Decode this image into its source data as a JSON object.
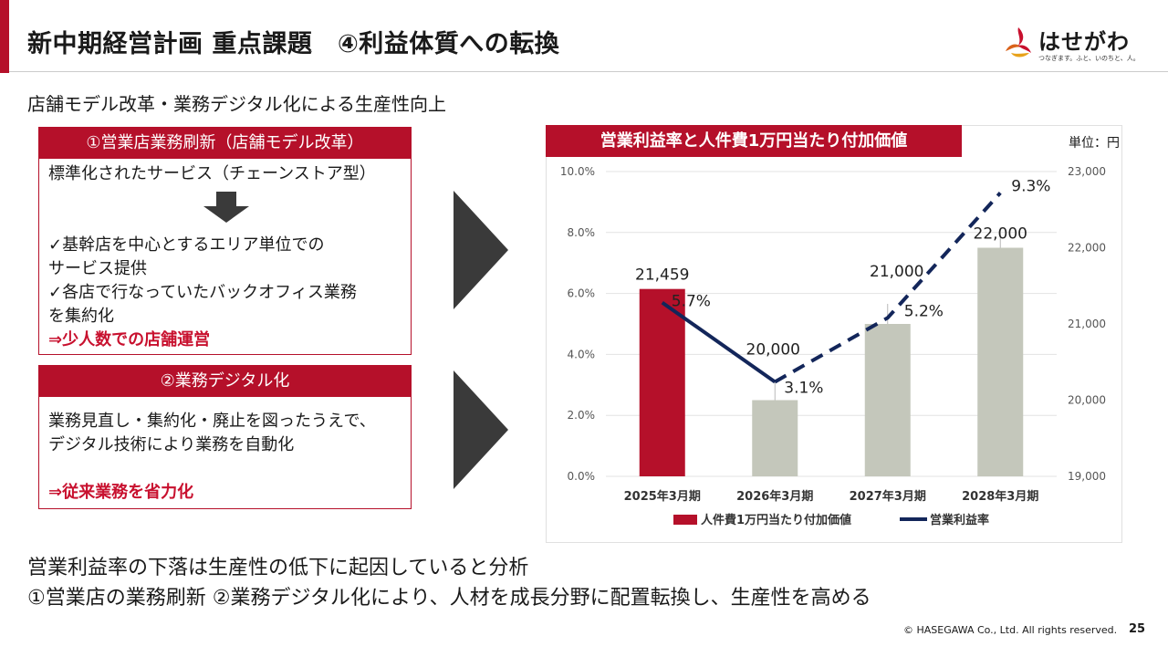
{
  "header": {
    "title": "新中期経営計画 重点課題　④利益体質への転換"
  },
  "logo": {
    "name": "はせがわ",
    "tagline": "つなぎます。ふと、いのちと、人。"
  },
  "subtitle": "店舗モデル改革・業務デジタル化による生産性向上",
  "box1": {
    "heading": "①営業店業務刷新（店舗モデル改革）",
    "line1": "標準化されたサービス（チェーンストア型）",
    "line2": "✓基幹店を中心とするエリア単位での",
    "line3": "サービス提供",
    "line4": "✓各店で行なっていたバックオフィス業務",
    "line5": "を集約化",
    "result": "⇒少人数での店舗運営"
  },
  "box2": {
    "heading": "②業務デジタル化",
    "line1": "業務見直し・集約化・廃止を図ったうえで、",
    "line2": "デジタル技術により業務を自動化",
    "result": "⇒従来業務を省力化"
  },
  "chart_title": "営業利益率と人件費1万円当たり付加価値",
  "unit_label": "単位：円",
  "chart_data": {
    "type": "bar",
    "categories": [
      "2025年3月期",
      "2026年3月期",
      "2027年3月期",
      "2028年3月期"
    ],
    "series": [
      {
        "name": "人件費1万円当たり付加価値",
        "type": "bar",
        "axis": "right",
        "values": [
          21459,
          20000,
          21000,
          22000
        ],
        "labels": [
          "21,459",
          "20,000",
          "21,000",
          "22,000"
        ],
        "colors": [
          "#b5102a",
          "#c4c7bb",
          "#c4c7bb",
          "#c4c7bb"
        ]
      },
      {
        "name": "営業利益率",
        "type": "line",
        "axis": "left",
        "values": [
          5.7,
          3.1,
          5.2,
          9.3
        ],
        "labels": [
          "5.7%",
          "3.1%",
          "5.2%",
          "9.3%"
        ],
        "color": "#13265a",
        "dashed_from_index": 1
      }
    ],
    "y_left": {
      "range": [
        0,
        10
      ],
      "ticks": [
        "0.0%",
        "2.0%",
        "4.0%",
        "6.0%",
        "8.0%",
        "10.0%"
      ]
    },
    "y_right": {
      "range": [
        19000,
        23000
      ],
      "ticks": [
        "19,000",
        "20,000",
        "21,000",
        "22,000",
        "23,000"
      ]
    },
    "legend": "bottom",
    "grid": true
  },
  "conclusion": {
    "line1": "営業利益率の下落は生産性の低下に起因していると分析",
    "line2": "①営業店の業務刷新 ②業務デジタル化により、人材を成長分野に配置転換し、生産性を高める"
  },
  "footer": {
    "copyright": "© HASEGAWA Co., Ltd. All rights reserved.",
    "page": "25"
  }
}
